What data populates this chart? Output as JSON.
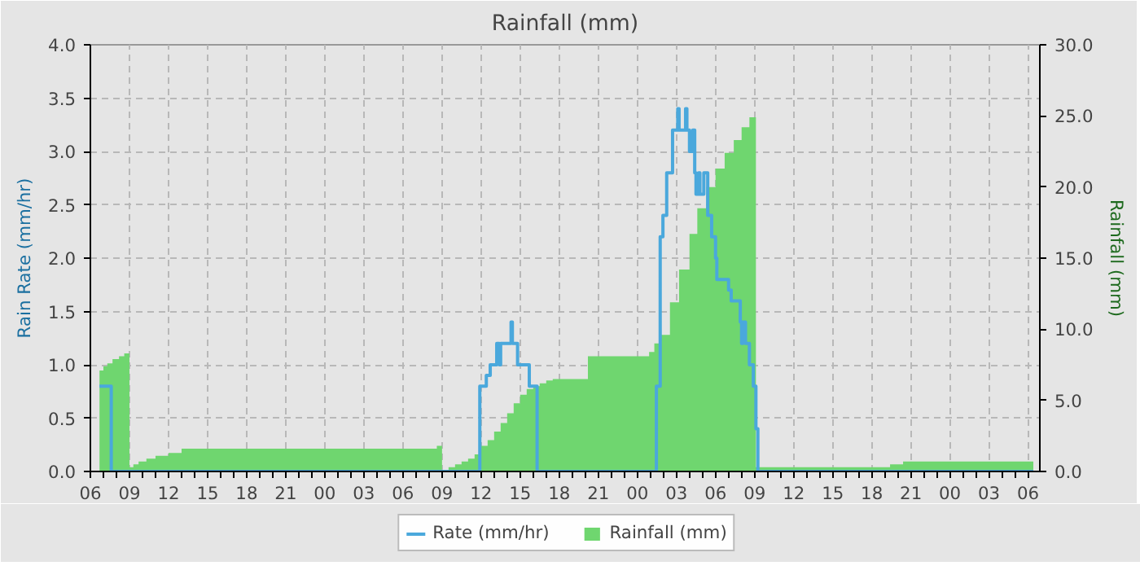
{
  "chart_data": {
    "type": "step",
    "title": "Rainfall (mm)",
    "ylabel": "Rain Rate (mm/hr)",
    "y2label": "Rainfall (mm)",
    "xlim": [
      6,
      78.9
    ],
    "ylim": [
      0,
      4
    ],
    "y2lim": [
      0,
      30
    ],
    "xticks": [
      {
        "value": 6,
        "label": "06"
      },
      {
        "value": 9,
        "label": "09"
      },
      {
        "value": 12,
        "label": "12"
      },
      {
        "value": 15,
        "label": "15"
      },
      {
        "value": 18,
        "label": "18"
      },
      {
        "value": 21,
        "label": "21"
      },
      {
        "value": 24,
        "label": "00"
      },
      {
        "value": 27,
        "label": "03"
      },
      {
        "value": 30,
        "label": "06"
      },
      {
        "value": 33,
        "label": "09"
      },
      {
        "value": 36,
        "label": "12"
      },
      {
        "value": 39,
        "label": "15"
      },
      {
        "value": 42,
        "label": "18"
      },
      {
        "value": 45,
        "label": "21"
      },
      {
        "value": 48,
        "label": "00"
      },
      {
        "value": 51,
        "label": "03"
      },
      {
        "value": 54,
        "label": "06"
      },
      {
        "value": 57,
        "label": "09"
      },
      {
        "value": 60,
        "label": "12"
      },
      {
        "value": 63,
        "label": "15"
      },
      {
        "value": 66,
        "label": "18"
      },
      {
        "value": 69,
        "label": "21"
      },
      {
        "value": 72,
        "label": "00"
      },
      {
        "value": 75,
        "label": "03"
      },
      {
        "value": 78,
        "label": "06"
      }
    ],
    "yticks": [
      {
        "value": 0,
        "label": "0.0"
      },
      {
        "value": 0.5,
        "label": "0.5"
      },
      {
        "value": 1,
        "label": "1.0"
      },
      {
        "value": 1.5,
        "label": "1.5"
      },
      {
        "value": 2,
        "label": "2.0"
      },
      {
        "value": 2.5,
        "label": "2.5"
      },
      {
        "value": 3,
        "label": "3.0"
      },
      {
        "value": 3.5,
        "label": "3.5"
      },
      {
        "value": 4,
        "label": "4.0"
      }
    ],
    "y2ticks": [
      {
        "value": 0,
        "label": "0.0"
      },
      {
        "value": 5,
        "label": "5.0"
      },
      {
        "value": 10,
        "label": "10.0"
      },
      {
        "value": 15,
        "label": "15.0"
      },
      {
        "value": 20,
        "label": "20.0"
      },
      {
        "value": 25,
        "label": "25.0"
      },
      {
        "value": 30,
        "label": "30.0"
      }
    ],
    "grid": true,
    "legend": "bottom",
    "series": [
      {
        "name": "Rate (mm/hr)",
        "color": "#4aa8dc",
        "x": [
          6.7,
          7.6,
          35.9,
          36.4,
          36.7,
          37.2,
          37.4,
          37.5,
          38.3,
          38.4,
          38.8,
          39.7,
          40.3,
          49.46,
          49.75,
          49.96,
          50.25,
          50.7,
          51.1,
          51.2,
          51.7,
          51.8,
          52.0,
          52.25,
          52.4,
          52.5,
          52.7,
          52.8,
          53.1,
          53.4,
          53.7,
          54.0,
          54.1,
          55.0,
          55.2,
          55.9,
          56.0,
          56.1,
          56.3,
          56.6,
          56.9,
          57.1,
          57.25,
          78.4
        ],
        "values": [
          0.8,
          0,
          0.8,
          0.9,
          1.0,
          1.2,
          1.0,
          1.2,
          1.4,
          1.2,
          1.0,
          0.8,
          0,
          0.8,
          2.2,
          2.4,
          2.8,
          3.2,
          3.4,
          3.2,
          3.4,
          3.2,
          3.0,
          3.2,
          2.8,
          2.6,
          2.8,
          2.6,
          2.8,
          2.4,
          2.2,
          2.0,
          1.8,
          1.7,
          1.6,
          1.4,
          1.2,
          1.4,
          1.2,
          1.0,
          0.8,
          0.4,
          0,
          0
        ]
      },
      {
        "name": "Rainfall (mm)",
        "type": "area",
        "axis": "y2",
        "color": "#6fd66f",
        "x": [
          6.7,
          7.0,
          7.3,
          7.7,
          8.2,
          8.6,
          9.0,
          9.3,
          9.7,
          10.3,
          11.0,
          12.0,
          13.0,
          32.6,
          33.0,
          33.5,
          34.0,
          34.5,
          35.0,
          35.5,
          36.0,
          36.5,
          37.0,
          37.5,
          38.0,
          38.5,
          39.0,
          39.5,
          40.0,
          40.5,
          41.0,
          41.5,
          44.2,
          48.9,
          49.3,
          49.75,
          50.5,
          51.2,
          52.0,
          52.6,
          53.3,
          54.0,
          54.7,
          55.4,
          56.0,
          56.6,
          57.1,
          67.4,
          68.4,
          78.4
        ],
        "values": [
          7.1,
          7.4,
          7.6,
          7.9,
          8.1,
          8.3,
          0.3,
          0.5,
          0.7,
          0.9,
          1.1,
          1.3,
          1.6,
          1.8,
          0,
          0.3,
          0.5,
          0.7,
          0.9,
          1.2,
          1.8,
          2.2,
          2.8,
          3.4,
          4.1,
          4.8,
          5.4,
          5.8,
          6.0,
          6.2,
          6.4,
          6.5,
          8.1,
          8.4,
          9.0,
          9.6,
          11.9,
          14.2,
          16.7,
          18.5,
          20.0,
          21.3,
          22.4,
          23.3,
          24.2,
          24.9,
          0.3,
          0.5,
          0.7,
          0.7
        ]
      }
    ]
  }
}
